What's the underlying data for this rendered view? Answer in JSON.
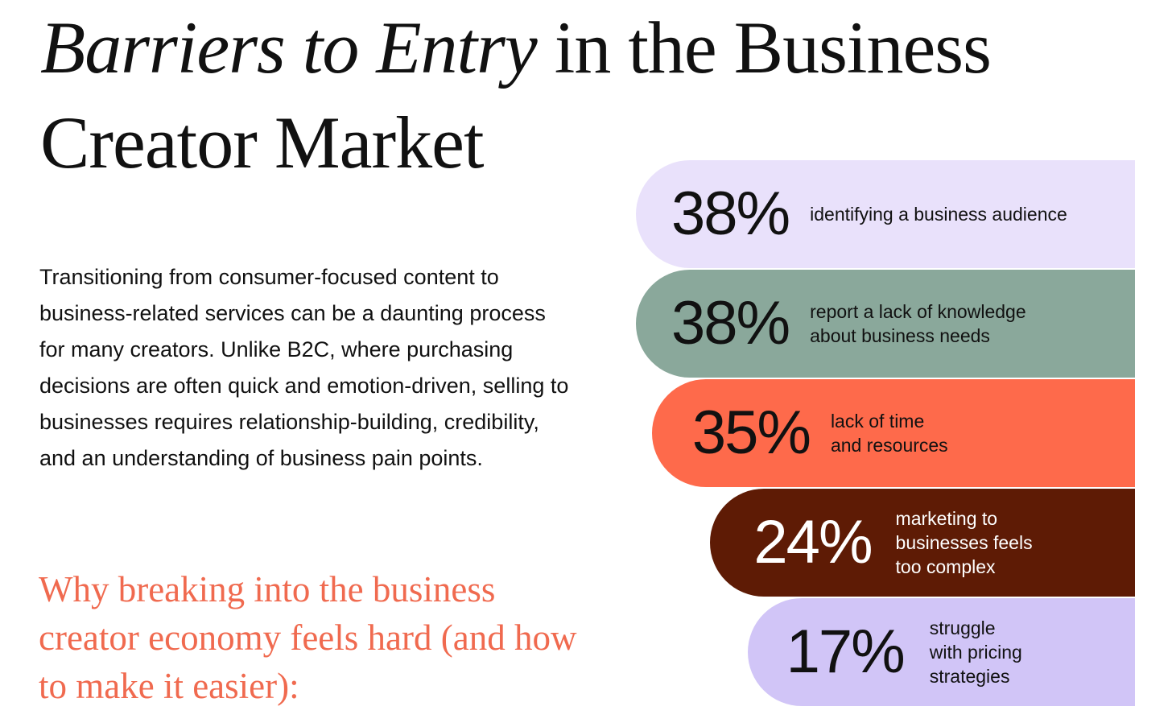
{
  "title": {
    "italic": "Barriers to Entry",
    "line1_rest": " in the Business",
    "line2": "Creator Market"
  },
  "intro": "Transitioning from consumer-focused content to business-related services can be a daunting process for many creators. Unlike B2C, where purchasing decisions are often quick and emotion-driven, selling to businesses requires relationship-building, credibility, and an understanding of business pain points.",
  "subhead": "Why breaking into the business creator economy feels hard (and how to make it easier):",
  "chart_data": {
    "type": "bar",
    "unit": "%",
    "items": [
      {
        "value": 38,
        "display": "38%",
        "label": "identifying a business audience",
        "color": "#e9e1fb",
        "text_color": "#111111"
      },
      {
        "value": 38,
        "display": "38%",
        "label": "report a lack of knowledge\nabout business  needs",
        "color": "#8aa89b",
        "text_color": "#111111"
      },
      {
        "value": 35,
        "display": "35%",
        "label": "lack of time\nand resources",
        "color": "#fe6a4b",
        "text_color": "#111111"
      },
      {
        "value": 24,
        "display": "24%",
        "label": "marketing to\nbusinesses feels\ntoo complex",
        "color": "#5e1b05",
        "text_color": "#ffffff"
      },
      {
        "value": 17,
        "display": "17%",
        "label": "struggle\nwith pricing\nstrategies",
        "color": "#d1c5f7",
        "text_color": "#111111"
      }
    ]
  }
}
